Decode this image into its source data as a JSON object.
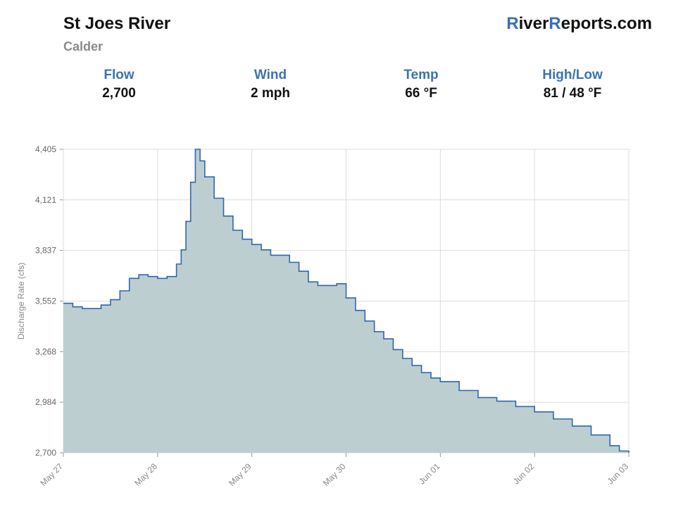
{
  "header": {
    "river_name": "St Joes River",
    "location": "Calder",
    "brand": {
      "r1": "R",
      "part1": "iver",
      "r2": "R",
      "part2": "eports.com"
    }
  },
  "stats": [
    {
      "label": "Flow",
      "value": "2,700"
    },
    {
      "label": "Wind",
      "value": "2 mph"
    },
    {
      "label": "Temp",
      "value": "66 °F"
    },
    {
      "label": "High/Low",
      "value": "81 / 48 °F"
    }
  ],
  "colors": {
    "accent": "#3a72b8",
    "line": "#2f66b0",
    "fill": "#b9cbcf",
    "grid": "#dddddd"
  },
  "chart_data": {
    "type": "area",
    "step": true,
    "ylabel": "Discharge Rate (cfs)",
    "ylim": [
      2700,
      4405
    ],
    "y_ticks": [
      "2,700",
      "2,984",
      "3,268",
      "3,552",
      "3,837",
      "4,121",
      "4,405"
    ],
    "y_tick_values": [
      2700,
      2984,
      3268,
      3552,
      3837,
      4121,
      4405
    ],
    "x_ticks": [
      "May 27",
      "May 28",
      "May 29",
      "May 30",
      "Jun 01",
      "Jun 02",
      "Jun 03"
    ],
    "x_tick_days": [
      0,
      1,
      2,
      3,
      4,
      5,
      6
    ],
    "series": [
      {
        "x_days": [
          0,
          0.1,
          0.2,
          0.3,
          0.4,
          0.5,
          0.6,
          0.7,
          0.8,
          0.9,
          1.0,
          1.1,
          1.2,
          1.25,
          1.3,
          1.35,
          1.4,
          1.45,
          1.5,
          1.6,
          1.7,
          1.8,
          1.9,
          2.0,
          2.1,
          2.2,
          2.3,
          2.4,
          2.5,
          2.6,
          2.7,
          2.8,
          2.9,
          3.0,
          3.1,
          3.2,
          3.3,
          3.4,
          3.5,
          3.6,
          3.7,
          3.8,
          3.9,
          4.0,
          4.2,
          4.4,
          4.6,
          4.8,
          5.0,
          5.2,
          5.4,
          5.6,
          5.8,
          5.9,
          6.0
        ],
        "y": [
          3540,
          3520,
          3510,
          3510,
          3530,
          3560,
          3610,
          3680,
          3700,
          3690,
          3680,
          3690,
          3760,
          3840,
          4000,
          4220,
          4405,
          4340,
          4250,
          4130,
          4030,
          3950,
          3900,
          3870,
          3840,
          3810,
          3810,
          3770,
          3720,
          3660,
          3640,
          3640,
          3650,
          3570,
          3500,
          3440,
          3380,
          3340,
          3280,
          3230,
          3190,
          3150,
          3120,
          3100,
          3050,
          3010,
          2990,
          2960,
          2930,
          2890,
          2850,
          2800,
          2740,
          2710,
          2700
        ]
      }
    ]
  }
}
